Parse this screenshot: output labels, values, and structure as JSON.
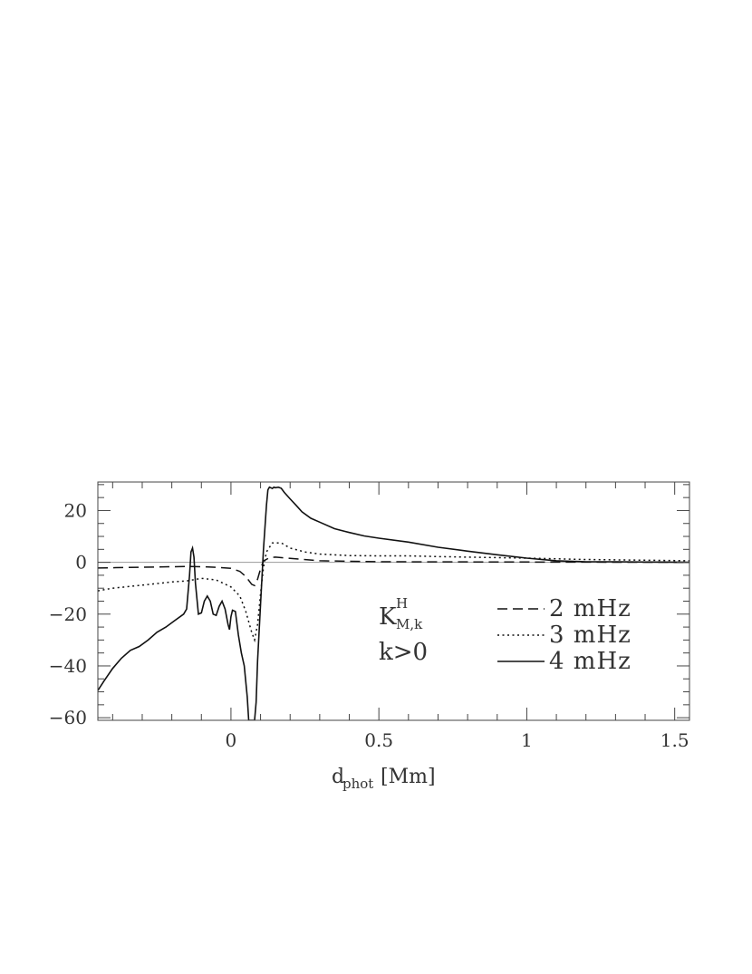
{
  "chart_data": {
    "type": "line",
    "title": "",
    "xlabel": {
      "main": "d",
      "sub": "phot",
      "unit": "[Mm]"
    },
    "ylabel": "",
    "xlim": [
      -0.45,
      1.55
    ],
    "ylim": [
      -61,
      31
    ],
    "x_ticks": [
      0,
      0.5,
      1,
      1.5
    ],
    "x_tick_labels": [
      "0",
      "0.5",
      "1",
      "1.5"
    ],
    "y_ticks": [
      20,
      0,
      -20,
      -40,
      -60
    ],
    "y_tick_labels": [
      "20",
      "0",
      "−20",
      "−40",
      "−60"
    ],
    "x_minor_step": 0.1,
    "y_minor_step": 5,
    "zero_line": true,
    "grid": false,
    "annotation": {
      "kernel_main": "K",
      "kernel_sup": "H",
      "kernel_sub": "M,k",
      "condition": "k>0"
    },
    "legend_position": "center-right",
    "series": [
      {
        "name": "2 mHz",
        "style": "dashed",
        "points": [
          [
            -0.45,
            -2.2
          ],
          [
            -0.35,
            -2.0
          ],
          [
            -0.25,
            -1.8
          ],
          [
            -0.15,
            -1.6
          ],
          [
            -0.1,
            -1.7
          ],
          [
            -0.05,
            -1.9
          ],
          [
            0,
            -2.3
          ],
          [
            0.03,
            -3.5
          ],
          [
            0.05,
            -5.5
          ],
          [
            0.07,
            -8.5
          ],
          [
            0.08,
            -9.0
          ],
          [
            0.09,
            -6.5
          ],
          [
            0.1,
            -2.5
          ],
          [
            0.11,
            0.5
          ],
          [
            0.13,
            1.8
          ],
          [
            0.15,
            2.0
          ],
          [
            0.2,
            1.5
          ],
          [
            0.3,
            0.6
          ],
          [
            0.5,
            0.2
          ],
          [
            1,
            0.1
          ],
          [
            1.55,
            0
          ]
        ]
      },
      {
        "name": "3 mHz",
        "style": "dotted",
        "points": [
          [
            -0.45,
            -11
          ],
          [
            -0.4,
            -10
          ],
          [
            -0.3,
            -8.8
          ],
          [
            -0.2,
            -7.6
          ],
          [
            -0.15,
            -7.2
          ],
          [
            -0.1,
            -6.2
          ],
          [
            -0.05,
            -6.8
          ],
          [
            0,
            -9.5
          ],
          [
            0.03,
            -13
          ],
          [
            0.05,
            -19
          ],
          [
            0.07,
            -27
          ],
          [
            0.08,
            -30
          ],
          [
            0.09,
            -24
          ],
          [
            0.1,
            -12
          ],
          [
            0.11,
            -2
          ],
          [
            0.12,
            4
          ],
          [
            0.14,
            7.5
          ],
          [
            0.17,
            7.5
          ],
          [
            0.2,
            5.5
          ],
          [
            0.25,
            4
          ],
          [
            0.3,
            3.2
          ],
          [
            0.4,
            2.6
          ],
          [
            0.5,
            2.5
          ],
          [
            0.6,
            2.5
          ],
          [
            0.7,
            2.2
          ],
          [
            0.8,
            2.0
          ],
          [
            1,
            1.6
          ],
          [
            1.2,
            1.1
          ],
          [
            1.4,
            0.8
          ],
          [
            1.55,
            0.6
          ]
        ]
      },
      {
        "name": "4 mHz",
        "style": "solid",
        "points": [
          [
            -0.45,
            -49.5
          ],
          [
            -0.43,
            -46
          ],
          [
            -0.4,
            -41
          ],
          [
            -0.37,
            -37
          ],
          [
            -0.34,
            -34
          ],
          [
            -0.31,
            -32.5
          ],
          [
            -0.28,
            -30
          ],
          [
            -0.25,
            -27
          ],
          [
            -0.22,
            -25
          ],
          [
            -0.19,
            -22.5
          ],
          [
            -0.16,
            -20
          ],
          [
            -0.15,
            -18
          ],
          [
            -0.14,
            -5
          ],
          [
            -0.135,
            4
          ],
          [
            -0.13,
            5.5
          ],
          [
            -0.125,
            2
          ],
          [
            -0.12,
            -8
          ],
          [
            -0.11,
            -20
          ],
          [
            -0.1,
            -19.5
          ],
          [
            -0.09,
            -15
          ],
          [
            -0.08,
            -13
          ],
          [
            -0.07,
            -15
          ],
          [
            -0.06,
            -20
          ],
          [
            -0.05,
            -20.5
          ],
          [
            -0.04,
            -17
          ],
          [
            -0.03,
            -15
          ],
          [
            -0.02,
            -18
          ],
          [
            -0.01,
            -24
          ],
          [
            -0.005,
            -26
          ],
          [
            0,
            -21
          ],
          [
            0.005,
            -18.5
          ],
          [
            0.015,
            -19
          ],
          [
            0.025,
            -28
          ],
          [
            0.035,
            -35
          ],
          [
            0.045,
            -40
          ],
          [
            0.055,
            -52
          ],
          [
            0.06,
            -61
          ],
          [
            0.08,
            -61
          ],
          [
            0.085,
            -54
          ],
          [
            0.09,
            -38
          ],
          [
            0.1,
            -16
          ],
          [
            0.11,
            5
          ],
          [
            0.12,
            22
          ],
          [
            0.125,
            28
          ],
          [
            0.13,
            29
          ],
          [
            0.14,
            28.5
          ],
          [
            0.145,
            29
          ],
          [
            0.15,
            28.8
          ],
          [
            0.16,
            29
          ],
          [
            0.17,
            28.6
          ],
          [
            0.18,
            27
          ],
          [
            0.2,
            24.5
          ],
          [
            0.22,
            22
          ],
          [
            0.24,
            19.5
          ],
          [
            0.27,
            17
          ],
          [
            0.3,
            15.5
          ],
          [
            0.35,
            13
          ],
          [
            0.4,
            11.5
          ],
          [
            0.45,
            10.2
          ],
          [
            0.5,
            9.3
          ],
          [
            0.6,
            7.8
          ],
          [
            0.7,
            5.8
          ],
          [
            0.8,
            4.3
          ],
          [
            0.9,
            2.9
          ],
          [
            1,
            1.6
          ],
          [
            1.1,
            0.6
          ],
          [
            1.2,
            0.2
          ],
          [
            1.3,
            0.2
          ],
          [
            1.4,
            0.1
          ],
          [
            1.55,
            0
          ]
        ]
      }
    ]
  }
}
